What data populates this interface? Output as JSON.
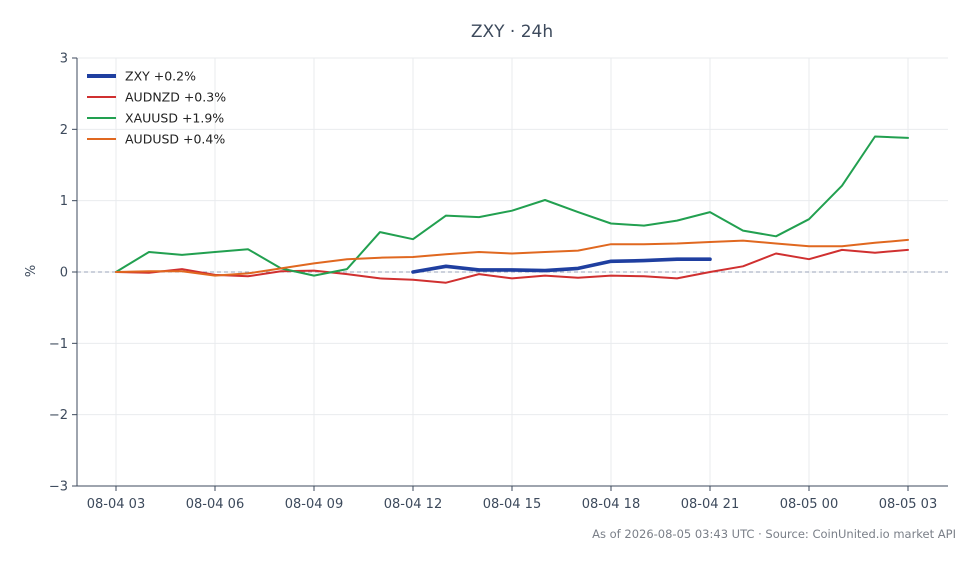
{
  "chart_data": {
    "type": "line",
    "title": "ZXY · 24h",
    "ylabel": "%",
    "xlabel": "",
    "ylim": [
      -3,
      3
    ],
    "yticks": [
      3,
      2,
      1,
      0,
      -1,
      -2,
      -3
    ],
    "ytick_labels": [
      "3",
      "2",
      "1",
      "0",
      "−1",
      "−2",
      "−3"
    ],
    "x_hours": [
      0,
      1,
      2,
      3,
      4,
      5,
      6,
      7,
      8,
      9,
      10,
      11,
      12,
      13,
      14,
      15,
      16,
      17,
      18,
      19,
      20,
      21,
      22,
      23,
      24
    ],
    "xticks": [
      {
        "hour": 0,
        "label": "08-04 03"
      },
      {
        "hour": 3,
        "label": "08-04 06"
      },
      {
        "hour": 6,
        "label": "08-04 09"
      },
      {
        "hour": 9,
        "label": "08-04 12"
      },
      {
        "hour": 12,
        "label": "08-04 15"
      },
      {
        "hour": 15,
        "label": "08-04 18"
      },
      {
        "hour": 18,
        "label": "08-04 21"
      },
      {
        "hour": 21,
        "label": "08-05 00"
      },
      {
        "hour": 24,
        "label": "08-05 03"
      }
    ],
    "zero_line": true,
    "grid": true,
    "legend_position": "top-left",
    "series": [
      {
        "name": "ZXY +0.2%",
        "color": "#1f3fa0",
        "bold": true,
        "x": [
          9,
          10,
          11,
          12,
          13,
          14,
          15,
          16,
          17,
          18
        ],
        "values": [
          0.0,
          0.08,
          0.03,
          0.03,
          0.02,
          0.05,
          0.15,
          0.16,
          0.18,
          0.18
        ]
      },
      {
        "name": "AUDNZD +0.3%",
        "color": "#d03030",
        "x": [
          0,
          1,
          2,
          3,
          4,
          5,
          6,
          7,
          8,
          9,
          10,
          11,
          12,
          13,
          14,
          15,
          16,
          17,
          18,
          19,
          20,
          21,
          22,
          23,
          24
        ],
        "values": [
          0.0,
          -0.01,
          0.04,
          -0.04,
          -0.06,
          0.01,
          0.02,
          -0.03,
          -0.09,
          -0.11,
          -0.15,
          -0.03,
          -0.09,
          -0.05,
          -0.08,
          -0.05,
          -0.06,
          -0.09,
          0.0,
          0.08,
          0.26,
          0.18,
          0.31,
          0.27,
          0.31
        ]
      },
      {
        "name": "XAUUSD +1.9%",
        "color": "#22a050",
        "x": [
          0,
          1,
          2,
          3,
          4,
          5,
          6,
          7,
          8,
          9,
          10,
          11,
          12,
          13,
          14,
          15,
          16,
          17,
          18,
          19,
          20,
          21,
          22,
          23,
          24
        ],
        "values": [
          0.0,
          0.28,
          0.24,
          0.28,
          0.32,
          0.05,
          -0.05,
          0.04,
          0.56,
          0.46,
          0.79,
          0.77,
          0.86,
          1.01,
          0.84,
          0.68,
          0.65,
          0.72,
          0.84,
          0.58,
          0.5,
          0.74,
          1.21,
          1.9,
          1.88
        ]
      },
      {
        "name": "AUDUSD +0.4%",
        "color": "#e06820",
        "x": [
          0,
          1,
          2,
          3,
          4,
          5,
          6,
          7,
          8,
          9,
          10,
          11,
          12,
          13,
          14,
          15,
          16,
          17,
          18,
          19,
          20,
          21,
          22,
          23,
          24
        ],
        "values": [
          0.0,
          0.01,
          0.01,
          -0.05,
          -0.02,
          0.05,
          0.12,
          0.18,
          0.2,
          0.21,
          0.25,
          0.28,
          0.26,
          0.28,
          0.3,
          0.39,
          0.39,
          0.4,
          0.42,
          0.44,
          0.4,
          0.36,
          0.36,
          0.41,
          0.45
        ]
      }
    ],
    "footer": "As of 2026-08-05 03:43 UTC · Source: CoinUnited.io market API"
  }
}
